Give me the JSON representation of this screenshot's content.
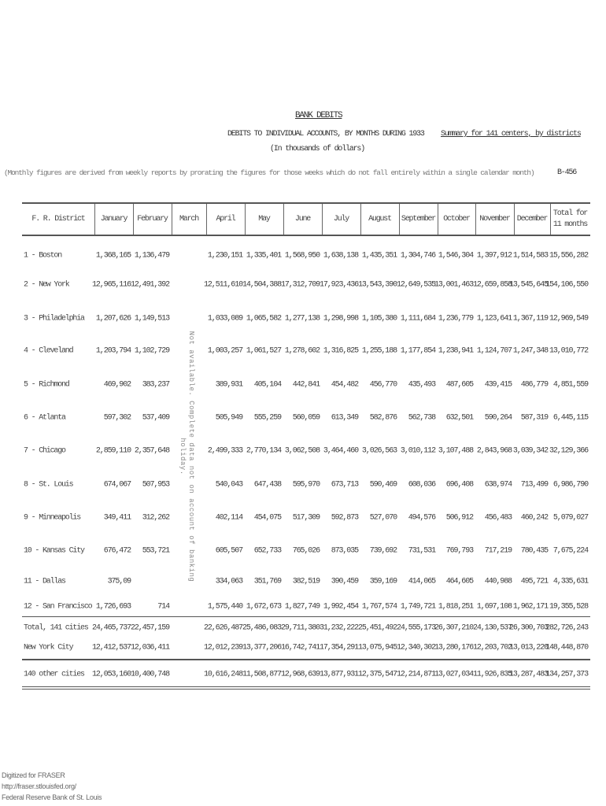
{
  "header": {
    "title": "BANK DEBITS",
    "subtitle": "DEBITS TO INDIVIDUAL ACCOUNTS, BY MONTHS DURING 1933",
    "summary": "Summary for 141 centers, by districts",
    "units": "(In thousands of dollars)",
    "note": "(Monthly figures are derived from weekly reports by prorating the figures for those weeks which do not fall entirely within a single calendar month)",
    "code": "B-456"
  },
  "table": {
    "columns": [
      "F. R. District",
      "January",
      "February",
      "March",
      "April",
      "May",
      "June",
      "July",
      "August",
      "September",
      "October",
      "November",
      "December",
      "Total for 11 months"
    ],
    "march_note": "Not available. Complete data not on account of banking holiday.",
    "rows": [
      {
        "label": "1 - Boston",
        "values": [
          "1,368,165",
          "1,136,479",
          "",
          "1,230,151",
          "1,335,401",
          "1,568,950",
          "1,638,138",
          "1,435,351",
          "1,304,746",
          "1,546,304",
          "1,397,912",
          "1,514,583",
          "15,556,282"
        ]
      },
      {
        "label": "2 - New York",
        "values": [
          "12,965,116",
          "12,491,392",
          "",
          "12,511,610",
          "14,504,388",
          "17,312,709",
          "17,923,436",
          "13,543,390",
          "12,649,535",
          "13,001,463",
          "12,659,858",
          "13,545,645",
          "154,106,550"
        ]
      },
      {
        "label": "3 - Philadelphia",
        "values": [
          "1,207,626",
          "1,149,513",
          "",
          "1,033,089",
          "1,065,582",
          "1,277,138",
          "1,298,998",
          "1,105,380",
          "1,111,684",
          "1,236,779",
          "1,123,641",
          "1,367,119",
          "12,969,549"
        ]
      },
      {
        "label": "4 - Cleveland",
        "values": [
          "1,203,794",
          "1,102,729",
          "",
          "1,003,257",
          "1,061,527",
          "1,278,602",
          "1,316,825",
          "1,255,188",
          "1,177,854",
          "1,238,941",
          "1,124,707",
          "1,247,348",
          "13,010,772"
        ]
      },
      {
        "label": "5 - Richmond",
        "values": [
          "469,902",
          "383,237",
          "",
          "389,931",
          "405,104",
          "442,841",
          "454,482",
          "456,770",
          "435,493",
          "487,605",
          "439,415",
          "486,779",
          "4,851,559"
        ]
      },
      {
        "label": "6 - Atlanta",
        "values": [
          "597,302",
          "537,409",
          "",
          "505,949",
          "555,259",
          "560,059",
          "613,349",
          "582,876",
          "562,738",
          "632,501",
          "590,264",
          "587,319",
          "6,445,115"
        ]
      },
      {
        "label": "7 - Chicago",
        "values": [
          "2,859,110",
          "2,357,648",
          "",
          "2,499,333",
          "2,770,134",
          "3,062,508",
          "3,464,460",
          "3,026,563",
          "3,010,112",
          "3,107,488",
          "2,843,968",
          "3,039,342",
          "32,129,366"
        ]
      },
      {
        "label": "8 - St. Louis",
        "values": [
          "674,067",
          "507,953",
          "",
          "540,043",
          "647,438",
          "595,970",
          "673,713",
          "590,469",
          "608,036",
          "696,408",
          "638,974",
          "713,499",
          "6,986,790"
        ]
      },
      {
        "label": "9 - Minneapolis",
        "values": [
          "349,411",
          "312,262",
          "",
          "402,114",
          "454,075",
          "517,309",
          "592,873",
          "527,070",
          "494,576",
          "506,912",
          "456,483",
          "460,242",
          "5,079,027"
        ]
      },
      {
        "label": "10 - Kansas City",
        "values": [
          "676,472",
          "553,721",
          "",
          "605,507",
          "652,733",
          "765,026",
          "873,035",
          "739,692",
          "731,531",
          "769,793",
          "717,219",
          "780,435",
          "7,675,224"
        ]
      },
      {
        "label": "11 - Dallas",
        "values": [
          "375,09",
          "",
          "",
          "334,063",
          "351,769",
          "382,519",
          "390,459",
          "359,169",
          "414,065",
          "464,605",
          "440,988",
          "495,721",
          "4,335,631"
        ]
      },
      {
        "label": "12 - San Francisco",
        "values": [
          "1,726,693",
          "714",
          "",
          "1,575,440",
          "1,672,673",
          "1,827,749",
          "1,992,454",
          "1,767,574",
          "1,749,721",
          "1,818,251",
          "1,697,108",
          "1,962,171",
          "19,355,528"
        ]
      },
      {
        "label": "Total, 141 cities",
        "values": [
          "24,465,737",
          "22,457,159",
          "",
          "22,626,487",
          "25,486,083",
          "29,711,380",
          "31,232,222",
          "25,451,492",
          "24,555,173",
          "26,307,210",
          "24,130,537",
          "26,300,703",
          "282,726,243"
        ]
      },
      {
        "label": "New York City",
        "values": [
          "12,412,537",
          "12,036,411",
          "",
          "12,012,239",
          "13,377,206",
          "16,742,741",
          "17,354,291",
          "13,075,945",
          "12,340,302",
          "13,280,176",
          "12,203,702",
          "13,013,220",
          "148,448,870"
        ]
      },
      {
        "label": "140 other cities",
        "values": [
          "12,053,160",
          "10,400,748",
          "",
          "10,616,248",
          "11,508,877",
          "12,968,639",
          "13,877,931",
          "12,375,547",
          "12,214,871",
          "13,027,034",
          "11,926,835",
          "13,287,483",
          "134,257,373"
        ]
      }
    ]
  },
  "footer": {
    "line1": "Digitized for FRASER",
    "line2": "http://fraser.stlouisfed.org/",
    "line3": "Federal Reserve Bank of St. Louis"
  }
}
